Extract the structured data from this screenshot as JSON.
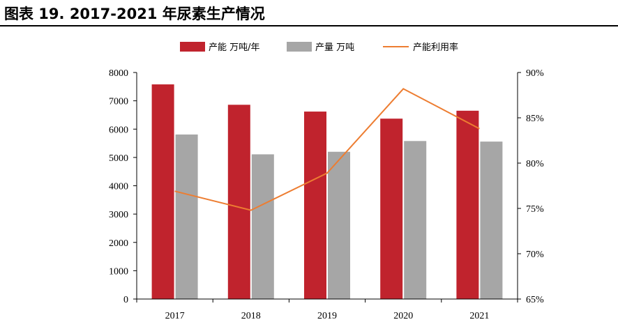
{
  "figure_title": "图表 19. 2017-2021 年尿素生产情况",
  "colors": {
    "capacity": "#C0232D",
    "output": "#A6A6A6",
    "utilization": "#ED7D31",
    "axis": "#000000"
  },
  "chart_data": {
    "type": "bar",
    "categories": [
      "2017",
      "2018",
      "2019",
      "2020",
      "2021"
    ],
    "series": [
      {
        "name": "产能 万吨/年",
        "type": "bar",
        "axis": "left",
        "values": [
          7580,
          6860,
          6620,
          6370,
          6650
        ]
      },
      {
        "name": "产量 万吨",
        "type": "bar",
        "axis": "left",
        "values": [
          5810,
          5110,
          5200,
          5580,
          5560
        ]
      },
      {
        "name": "产能利用率",
        "type": "line",
        "axis": "right",
        "values": [
          76.9,
          74.8,
          78.9,
          88.2,
          83.8
        ]
      }
    ],
    "y_left": {
      "lim": [
        0,
        8000
      ],
      "ticks": [
        "0",
        "1000",
        "2000",
        "3000",
        "4000",
        "5000",
        "6000",
        "7000",
        "8000"
      ]
    },
    "y_right": {
      "lim": [
        65,
        90
      ],
      "ticks": [
        "65%",
        "70%",
        "75%",
        "80%",
        "85%",
        "90%"
      ]
    },
    "legend_position": "top",
    "grid": false
  }
}
